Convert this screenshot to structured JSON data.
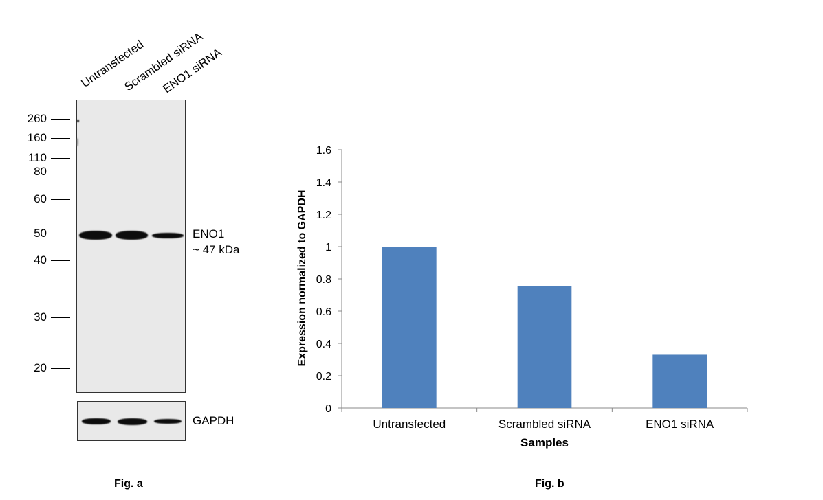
{
  "figure_a": {
    "caption": "Fig. a",
    "lanes": [
      "Untransfected",
      "Scrambled siRNA",
      "ENO1 siRNA"
    ],
    "markers": [
      "260",
      "160",
      "110",
      "80",
      "60",
      "50",
      "40",
      "30",
      "20"
    ],
    "target_label": "ENO1",
    "target_size": "~ 47 kDa",
    "loading_control_label": "GAPDH"
  },
  "figure_b": {
    "caption": "Fig. b"
  },
  "chart_data": {
    "type": "bar",
    "categories": [
      "Untransfected",
      "Scrambled siRNA",
      "ENO1 siRNA"
    ],
    "values": [
      1.0,
      0.755,
      0.33
    ],
    "title": "",
    "xlabel": "Samples",
    "ylabel": "Expression normalized to GAPDH",
    "ylim": [
      0,
      1.6
    ],
    "yticks": [
      "0",
      "0.2",
      "0.4",
      "0.6",
      "0.8",
      "1",
      "1.2",
      "1.4",
      "1.6"
    ],
    "bar_color": "#4f81bd",
    "grid": false,
    "legend": "none"
  }
}
